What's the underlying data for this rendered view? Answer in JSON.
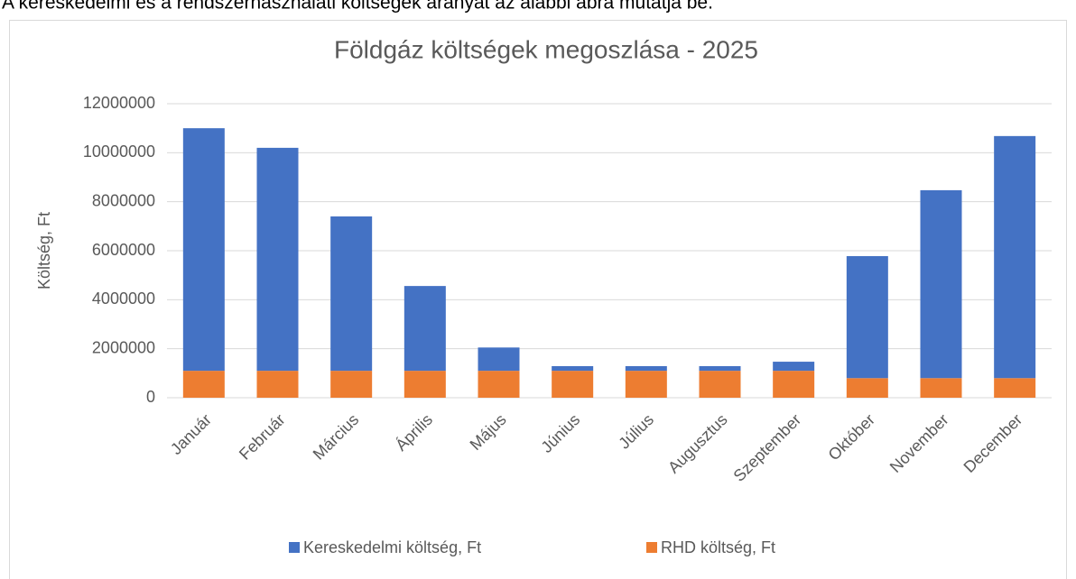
{
  "caption": "A kereskedelmi és a rendszerhasználati költségek arányát az alábbi ábra mutatja be.",
  "chart_data": {
    "type": "stacked_bar",
    "title": "Földgáz költségek megoszlása - 2025",
    "y_label": "Költség, Ft",
    "categories": [
      "Január",
      "Február",
      "Március",
      "Április",
      "Május",
      "Június",
      "Július",
      "Augusztus",
      "Szeptember",
      "Október",
      "November",
      "December"
    ],
    "series": [
      {
        "name": "Kereskedelmi költség, Ft",
        "color": "#4472c4",
        "values": [
          9900000,
          9100000,
          6300000,
          3460000,
          950000,
          190000,
          190000,
          190000,
          370000,
          4980000,
          7670000,
          9880000
        ]
      },
      {
        "name": "RHD költség, Ft",
        "color": "#ed7d31",
        "values": [
          1100000,
          1100000,
          1100000,
          1100000,
          1100000,
          1100000,
          1100000,
          1100000,
          1100000,
          800000,
          800000,
          800000
        ]
      }
    ],
    "ylim": [
      0,
      12000000
    ],
    "yticks": [
      0,
      2000000,
      4000000,
      6000000,
      8000000,
      10000000,
      12000000
    ],
    "grid": true,
    "legend": "bottom"
  }
}
